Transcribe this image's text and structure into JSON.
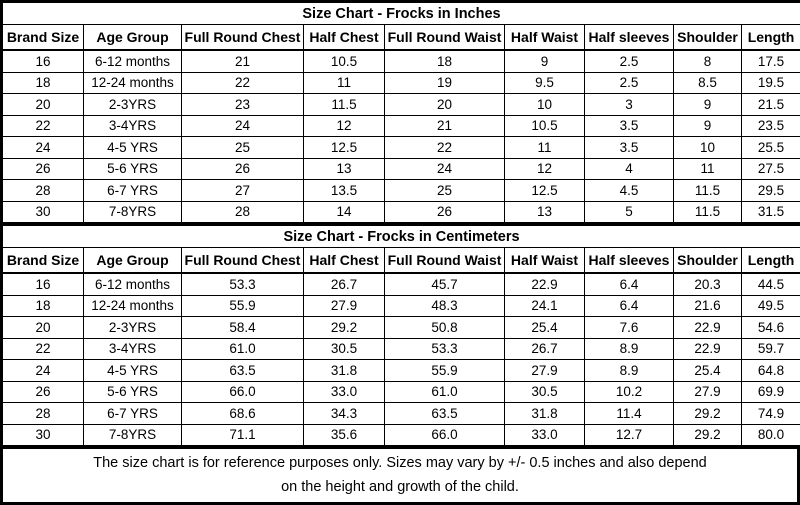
{
  "tables": [
    {
      "title": "Size Chart - Frocks in Inches",
      "headers": [
        "Brand Size",
        "Age Group",
        "Full Round Chest",
        "Half Chest",
        "Full Round Waist",
        "Half Waist",
        "Half sleeves",
        "Shoulder",
        "Length"
      ],
      "rows": [
        [
          "16",
          "6-12 months",
          "21",
          "10.5",
          "18",
          "9",
          "2.5",
          "8",
          "17.5"
        ],
        [
          "18",
          "12-24 months",
          "22",
          "11",
          "19",
          "9.5",
          "2.5",
          "8.5",
          "19.5"
        ],
        [
          "20",
          "2-3YRS",
          "23",
          "11.5",
          "20",
          "10",
          "3",
          "9",
          "21.5"
        ],
        [
          "22",
          "3-4YRS",
          "24",
          "12",
          "21",
          "10.5",
          "3.5",
          "9",
          "23.5"
        ],
        [
          "24",
          "4-5 YRS",
          "25",
          "12.5",
          "22",
          "11",
          "3.5",
          "10",
          "25.5"
        ],
        [
          "26",
          "5-6 YRS",
          "26",
          "13",
          "24",
          "12",
          "4",
          "11",
          "27.5"
        ],
        [
          "28",
          "6-7 YRS",
          "27",
          "13.5",
          "25",
          "12.5",
          "4.5",
          "11.5",
          "29.5"
        ],
        [
          "30",
          "7-8YRS",
          "28",
          "14",
          "26",
          "13",
          "5",
          "11.5",
          "31.5"
        ]
      ]
    },
    {
      "title": "Size Chart - Frocks in Centimeters",
      "headers": [
        "Brand Size",
        "Age Group",
        "Full Round Chest",
        "Half Chest",
        "Full Round Waist",
        "Half Waist",
        "Half sleeves",
        "Shoulder",
        "Length"
      ],
      "rows": [
        [
          "16",
          "6-12 months",
          "53.3",
          "26.7",
          "45.7",
          "22.9",
          "6.4",
          "20.3",
          "44.5"
        ],
        [
          "18",
          "12-24 months",
          "55.9",
          "27.9",
          "48.3",
          "24.1",
          "6.4",
          "21.6",
          "49.5"
        ],
        [
          "20",
          "2-3YRS",
          "58.4",
          "29.2",
          "50.8",
          "25.4",
          "7.6",
          "22.9",
          "54.6"
        ],
        [
          "22",
          "3-4YRS",
          "61.0",
          "30.5",
          "53.3",
          "26.7",
          "8.9",
          "22.9",
          "59.7"
        ],
        [
          "24",
          "4-5 YRS",
          "63.5",
          "31.8",
          "55.9",
          "27.9",
          "8.9",
          "25.4",
          "64.8"
        ],
        [
          "26",
          "5-6 YRS",
          "66.0",
          "33.0",
          "61.0",
          "30.5",
          "10.2",
          "27.9",
          "69.9"
        ],
        [
          "28",
          "6-7 YRS",
          "68.6",
          "34.3",
          "63.5",
          "31.8",
          "11.4",
          "29.2",
          "74.9"
        ],
        [
          "30",
          "7-8YRS",
          "71.1",
          "35.6",
          "66.0",
          "33.0",
          "12.7",
          "29.2",
          "80.0"
        ]
      ]
    }
  ],
  "footer_lines": [
    "The size chart is for reference purposes only. Sizes may vary by +/- 0.5 inches and also depend",
    "on the height and growth of the child."
  ]
}
